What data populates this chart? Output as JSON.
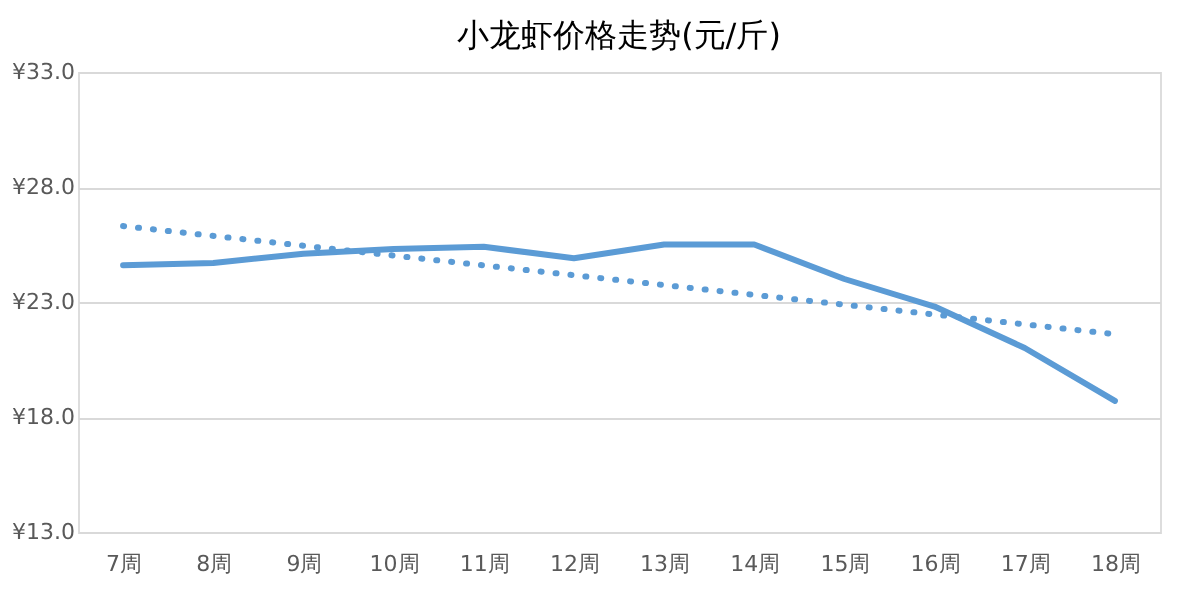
{
  "chart_data": {
    "type": "line",
    "title": "小龙虾价格走势(元/斤)",
    "categories": [
      "7周",
      "8周",
      "9周",
      "10周",
      "11周",
      "12周",
      "13周",
      "14周",
      "15周",
      "16周",
      "17周",
      "18周"
    ],
    "series": [
      {
        "color": "#5b9bd5",
        "line_style": "solid",
        "values": [
          24.6,
          24.7,
          25.1,
          25.3,
          25.4,
          24.9,
          25.5,
          25.5,
          24.0,
          22.8,
          21.0,
          18.7
        ]
      },
      {
        "color": "#5b9bd5",
        "line_style": "dotted",
        "x": [
          "7周",
          "18周"
        ],
        "values": [
          26.3,
          21.6
        ]
      }
    ],
    "ylim": [
      13,
      33
    ],
    "yticks": [
      {
        "value": 13,
        "label": "¥13.0"
      },
      {
        "value": 18,
        "label": "¥18.0"
      },
      {
        "value": 23,
        "label": "¥23.0"
      },
      {
        "value": 28,
        "label": "¥28.0"
      },
      {
        "value": 33,
        "label": "¥33.0"
      }
    ],
    "grid": "y",
    "marker": "none"
  }
}
